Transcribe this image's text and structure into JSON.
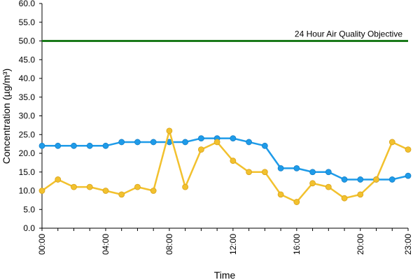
{
  "chart_data": {
    "type": "line",
    "xlabel": "Time",
    "ylabel": "Concentration (µg/m³)",
    "ylim": [
      0,
      60
    ],
    "y_ticks": [
      "0.0",
      "5.0",
      "10.0",
      "15.0",
      "20.0",
      "25.0",
      "30.0",
      "35.0",
      "40.0",
      "45.0",
      "50.0",
      "55.0",
      "60.0"
    ],
    "x": [
      0,
      1,
      2,
      3,
      4,
      5,
      6,
      7,
      8,
      9,
      10,
      11,
      12,
      13,
      14,
      15,
      16,
      17,
      18,
      19,
      20,
      21,
      22,
      23
    ],
    "x_ticks": [
      {
        "x": 0,
        "label": "00:00"
      },
      {
        "x": 4,
        "label": "04:00"
      },
      {
        "x": 8,
        "label": "08:00"
      },
      {
        "x": 12,
        "label": "12:00"
      },
      {
        "x": 16,
        "label": "16:00"
      },
      {
        "x": 20,
        "label": "20:00"
      },
      {
        "x": 23,
        "label": "23:00"
      }
    ],
    "grid": false,
    "legend": "none",
    "series": [
      {
        "color": "#1e9be9",
        "values": [
          22,
          22,
          22,
          22,
          22,
          23,
          23,
          23,
          23,
          23,
          24,
          24,
          24,
          23,
          22,
          16,
          16,
          15,
          15,
          13,
          13,
          13,
          13,
          14
        ]
      },
      {
        "color": "#f2c12e",
        "values": [
          10,
          13,
          11,
          11,
          10,
          9,
          11,
          10,
          26,
          11,
          21,
          23,
          18,
          15,
          15,
          9,
          7,
          12,
          11,
          8,
          9,
          13,
          23,
          21
        ]
      }
    ],
    "reference_line": {
      "value": 50,
      "label": "24 Hour Air Quality Objective",
      "color": "#1a7a1a"
    }
  }
}
